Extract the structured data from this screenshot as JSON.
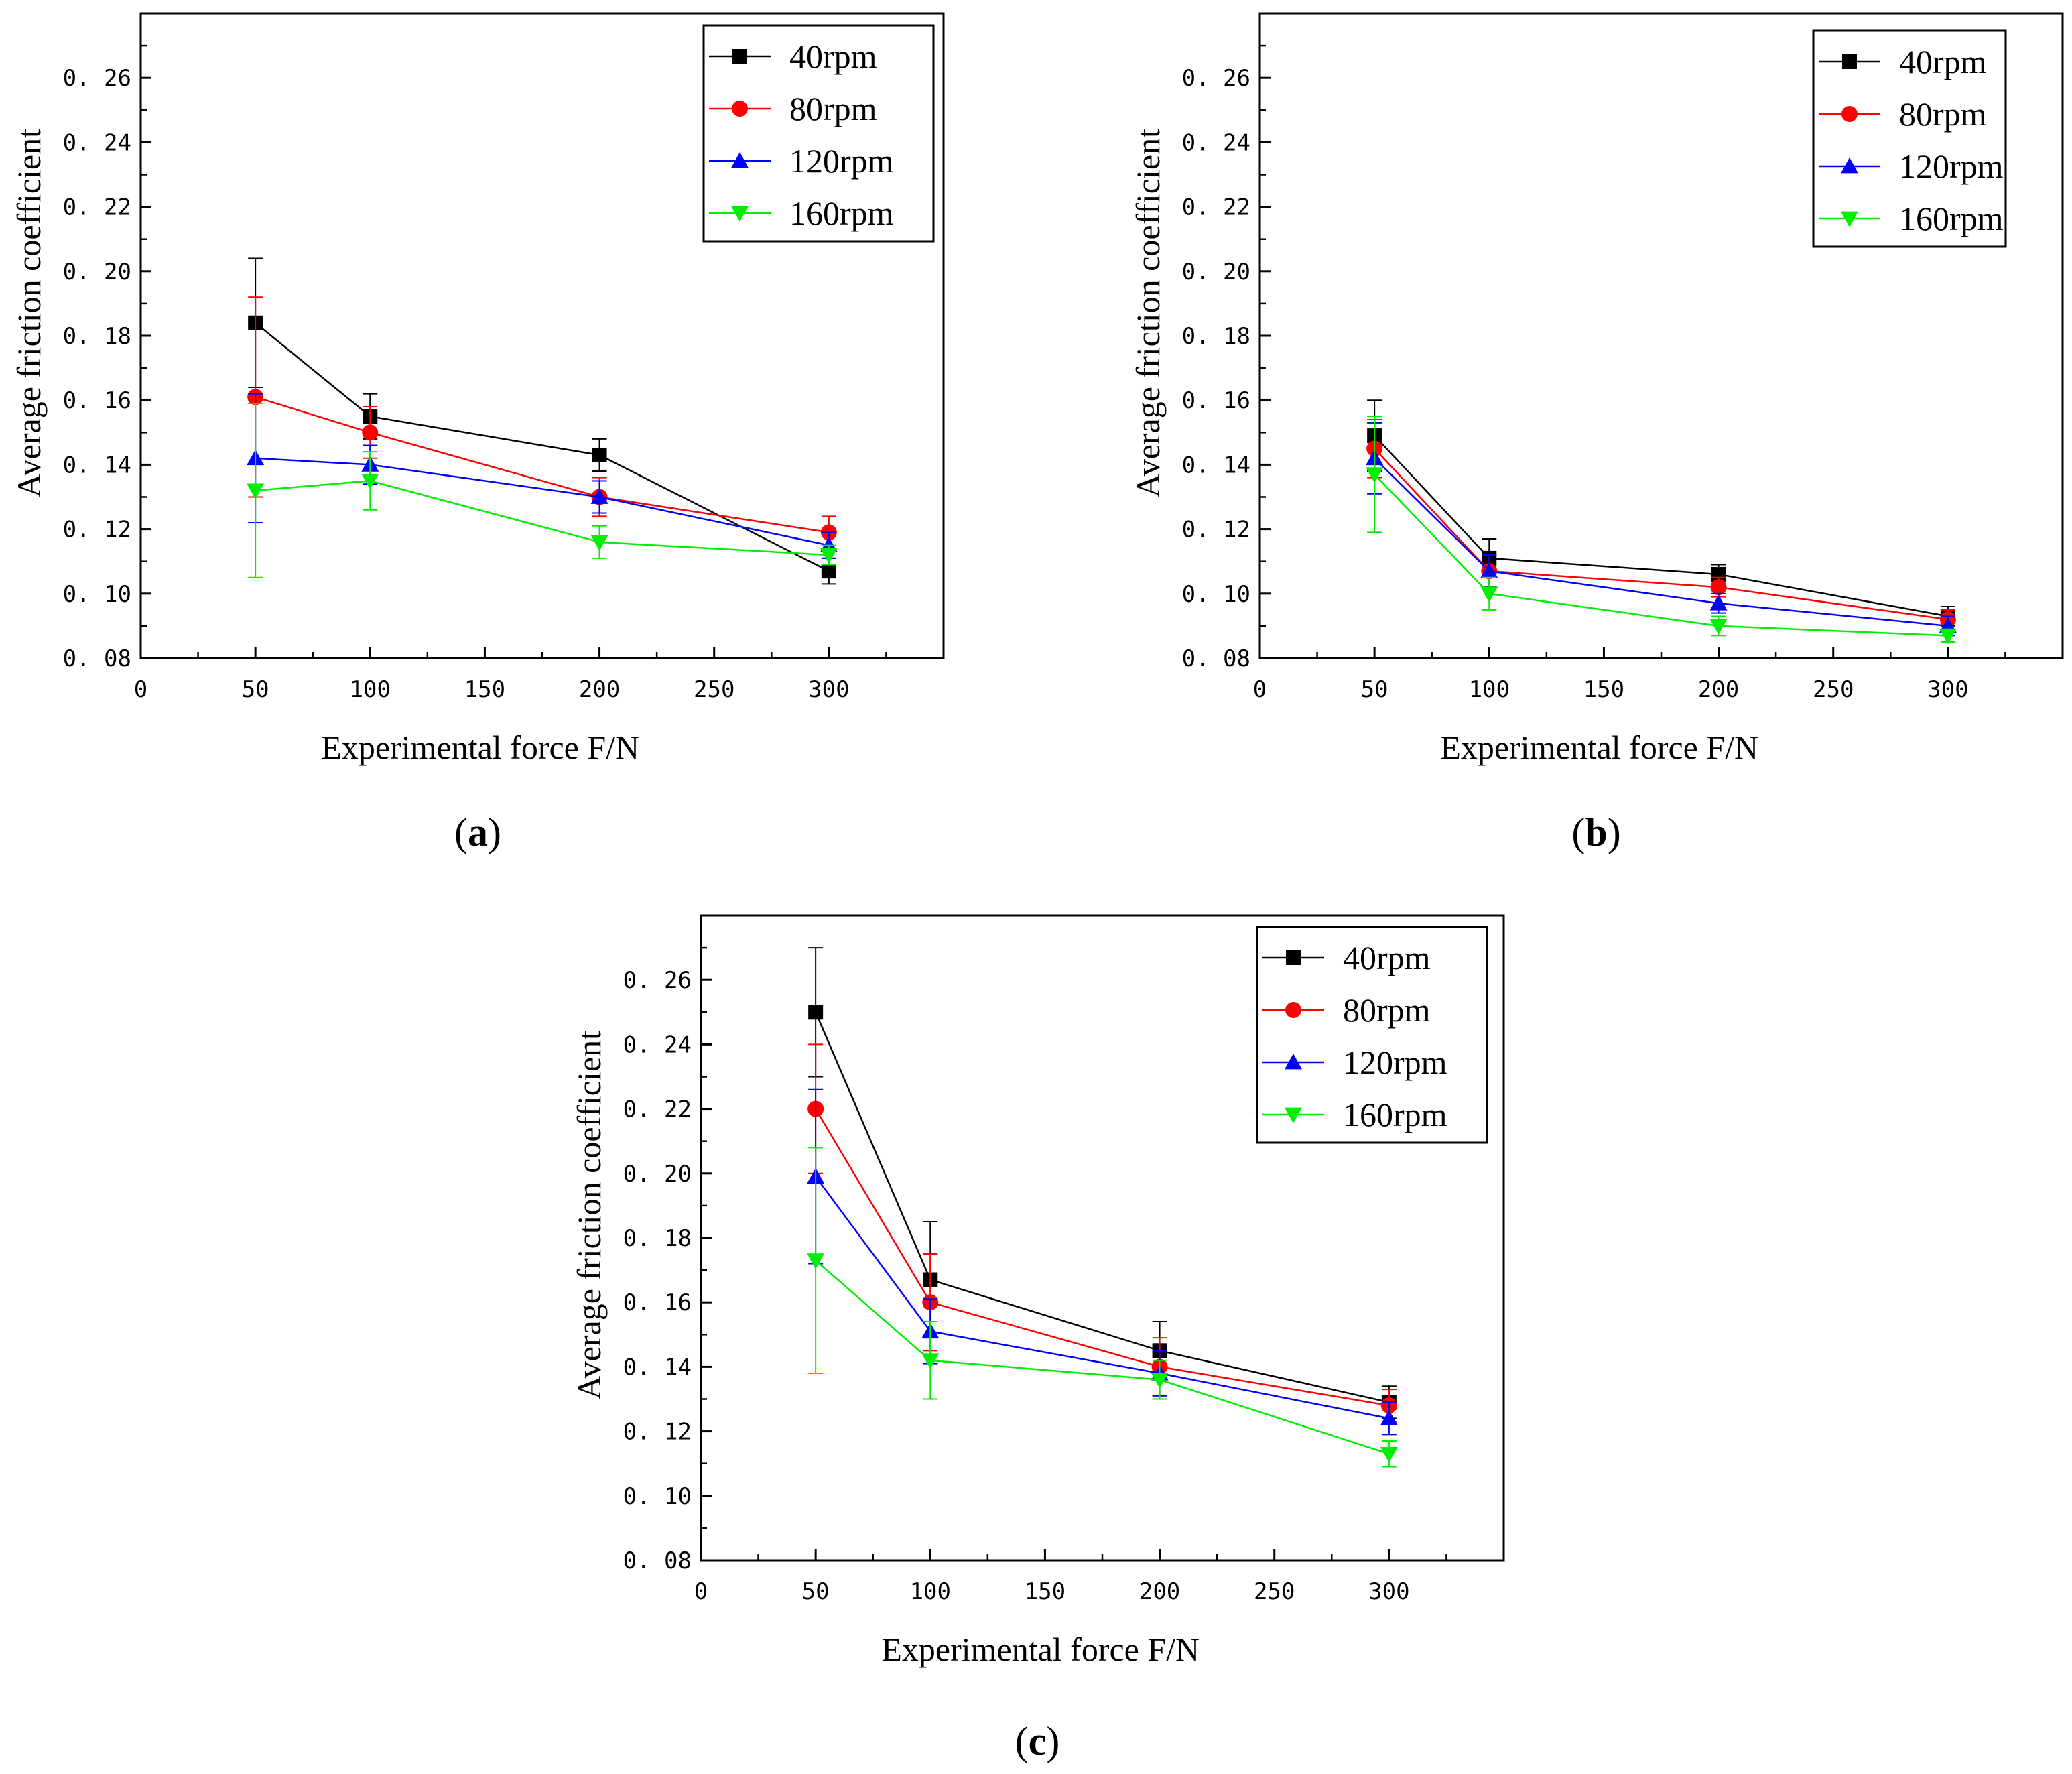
{
  "figure": {
    "panel_labels": [
      "a",
      "b",
      "c"
    ]
  },
  "chart_data": [
    {
      "type": "line",
      "panel": "a",
      "xlabel": "Experimental force F/N",
      "ylabel": "Average friction coefficient",
      "xlim": [
        0,
        350
      ],
      "ylim": [
        0.08,
        0.28
      ],
      "xticks": [
        0,
        50,
        100,
        150,
        200,
        250,
        300
      ],
      "xtick_labels": [
        "0",
        "50",
        "100",
        "150",
        "200",
        "250",
        "300"
      ],
      "yticks": [
        0.08,
        0.1,
        0.12,
        0.14,
        0.16,
        0.18,
        0.2,
        0.22,
        0.24,
        0.26
      ],
      "ytick_labels": [
        "0. 08",
        "0. 10",
        "0. 12",
        "0. 14",
        "0. 16",
        "0. 18",
        "0. 20",
        "0. 22",
        "0. 24",
        "0. 26"
      ],
      "legend_position": "top-right",
      "x": [
        50,
        100,
        200,
        300
      ],
      "series": [
        {
          "name": "40rpm",
          "color": "#000000",
          "marker": "square",
          "values": [
            0.184,
            0.155,
            0.143,
            0.107
          ],
          "errors": [
            0.02,
            0.007,
            0.005,
            0.004
          ]
        },
        {
          "name": "80rpm",
          "color": "#ff0000",
          "marker": "circle",
          "values": [
            0.161,
            0.15,
            0.13,
            0.119
          ],
          "errors": [
            0.031,
            0.008,
            0.006,
            0.005
          ]
        },
        {
          "name": "120rpm",
          "color": "#0000ff",
          "marker": "triangle-up",
          "values": [
            0.142,
            0.14,
            0.13,
            0.115
          ],
          "errors": [
            0.02,
            0.006,
            0.005,
            0.004
          ]
        },
        {
          "name": "160rpm",
          "color": "#00ee00",
          "marker": "triangle-down",
          "values": [
            0.132,
            0.135,
            0.116,
            0.112
          ],
          "errors": [
            0.027,
            0.009,
            0.005,
            0.003
          ]
        }
      ]
    },
    {
      "type": "line",
      "panel": "b",
      "xlabel": "Experimental force F/N",
      "ylabel": "Average friction coefficient",
      "xlim": [
        0,
        350
      ],
      "ylim": [
        0.08,
        0.28
      ],
      "xticks": [
        0,
        50,
        100,
        150,
        200,
        250,
        300
      ],
      "xtick_labels": [
        "0",
        "50",
        "100",
        "150",
        "200",
        "250",
        "300"
      ],
      "yticks": [
        0.08,
        0.1,
        0.12,
        0.14,
        0.16,
        0.18,
        0.2,
        0.22,
        0.24,
        0.26
      ],
      "ytick_labels": [
        "0. 08",
        "0. 10",
        "0. 12",
        "0. 14",
        "0. 16",
        "0. 18",
        "0. 20",
        "0. 22",
        "0. 24",
        "0. 26"
      ],
      "legend_position": "top-right",
      "x": [
        50,
        100,
        200,
        300
      ],
      "series": [
        {
          "name": "40rpm",
          "color": "#000000",
          "marker": "square",
          "values": [
            0.149,
            0.111,
            0.106,
            0.093
          ],
          "errors": [
            0.011,
            0.006,
            0.003,
            0.003
          ]
        },
        {
          "name": "80rpm",
          "color": "#ff0000",
          "marker": "circle",
          "values": [
            0.145,
            0.107,
            0.102,
            0.092
          ],
          "errors": [
            0.009,
            0.005,
            0.003,
            0.003
          ]
        },
        {
          "name": "120rpm",
          "color": "#0000ff",
          "marker": "triangle-up",
          "values": [
            0.142,
            0.107,
            0.097,
            0.09
          ],
          "errors": [
            0.011,
            0.005,
            0.003,
            0.003
          ]
        },
        {
          "name": "160rpm",
          "color": "#00ee00",
          "marker": "triangle-down",
          "values": [
            0.137,
            0.1,
            0.09,
            0.087
          ],
          "errors": [
            0.018,
            0.005,
            0.003,
            0.002
          ]
        }
      ]
    },
    {
      "type": "line",
      "panel": "c",
      "xlabel": "Experimental force F/N",
      "ylabel": "Average friction coefficient",
      "xlim": [
        0,
        350
      ],
      "ylim": [
        0.08,
        0.28
      ],
      "xticks": [
        0,
        50,
        100,
        150,
        200,
        250,
        300
      ],
      "xtick_labels": [
        "0",
        "50",
        "100",
        "150",
        "200",
        "250",
        "300"
      ],
      "yticks": [
        0.08,
        0.1,
        0.12,
        0.14,
        0.16,
        0.18,
        0.2,
        0.22,
        0.24,
        0.26
      ],
      "ytick_labels": [
        "0. 08",
        "0. 10",
        "0. 12",
        "0. 14",
        "0. 16",
        "0. 18",
        "0. 20",
        "0. 22",
        "0. 24",
        "0. 26"
      ],
      "legend_position": "top-right",
      "x": [
        50,
        100,
        200,
        300
      ],
      "series": [
        {
          "name": "40rpm",
          "color": "#000000",
          "marker": "square",
          "values": [
            0.25,
            0.167,
            0.145,
            0.129
          ],
          "errors": [
            0.02,
            0.018,
            0.009,
            0.005
          ]
        },
        {
          "name": "80rpm",
          "color": "#ff0000",
          "marker": "circle",
          "values": [
            0.22,
            0.16,
            0.14,
            0.128
          ],
          "errors": [
            0.02,
            0.015,
            0.009,
            0.005
          ]
        },
        {
          "name": "120rpm",
          "color": "#0000ff",
          "marker": "triangle-up",
          "values": [
            0.199,
            0.151,
            0.138,
            0.124
          ],
          "errors": [
            0.027,
            0.01,
            0.007,
            0.005
          ]
        },
        {
          "name": "160rpm",
          "color": "#00ee00",
          "marker": "triangle-down",
          "values": [
            0.173,
            0.142,
            0.136,
            0.113
          ],
          "errors": [
            0.035,
            0.012,
            0.006,
            0.004
          ]
        }
      ]
    }
  ]
}
